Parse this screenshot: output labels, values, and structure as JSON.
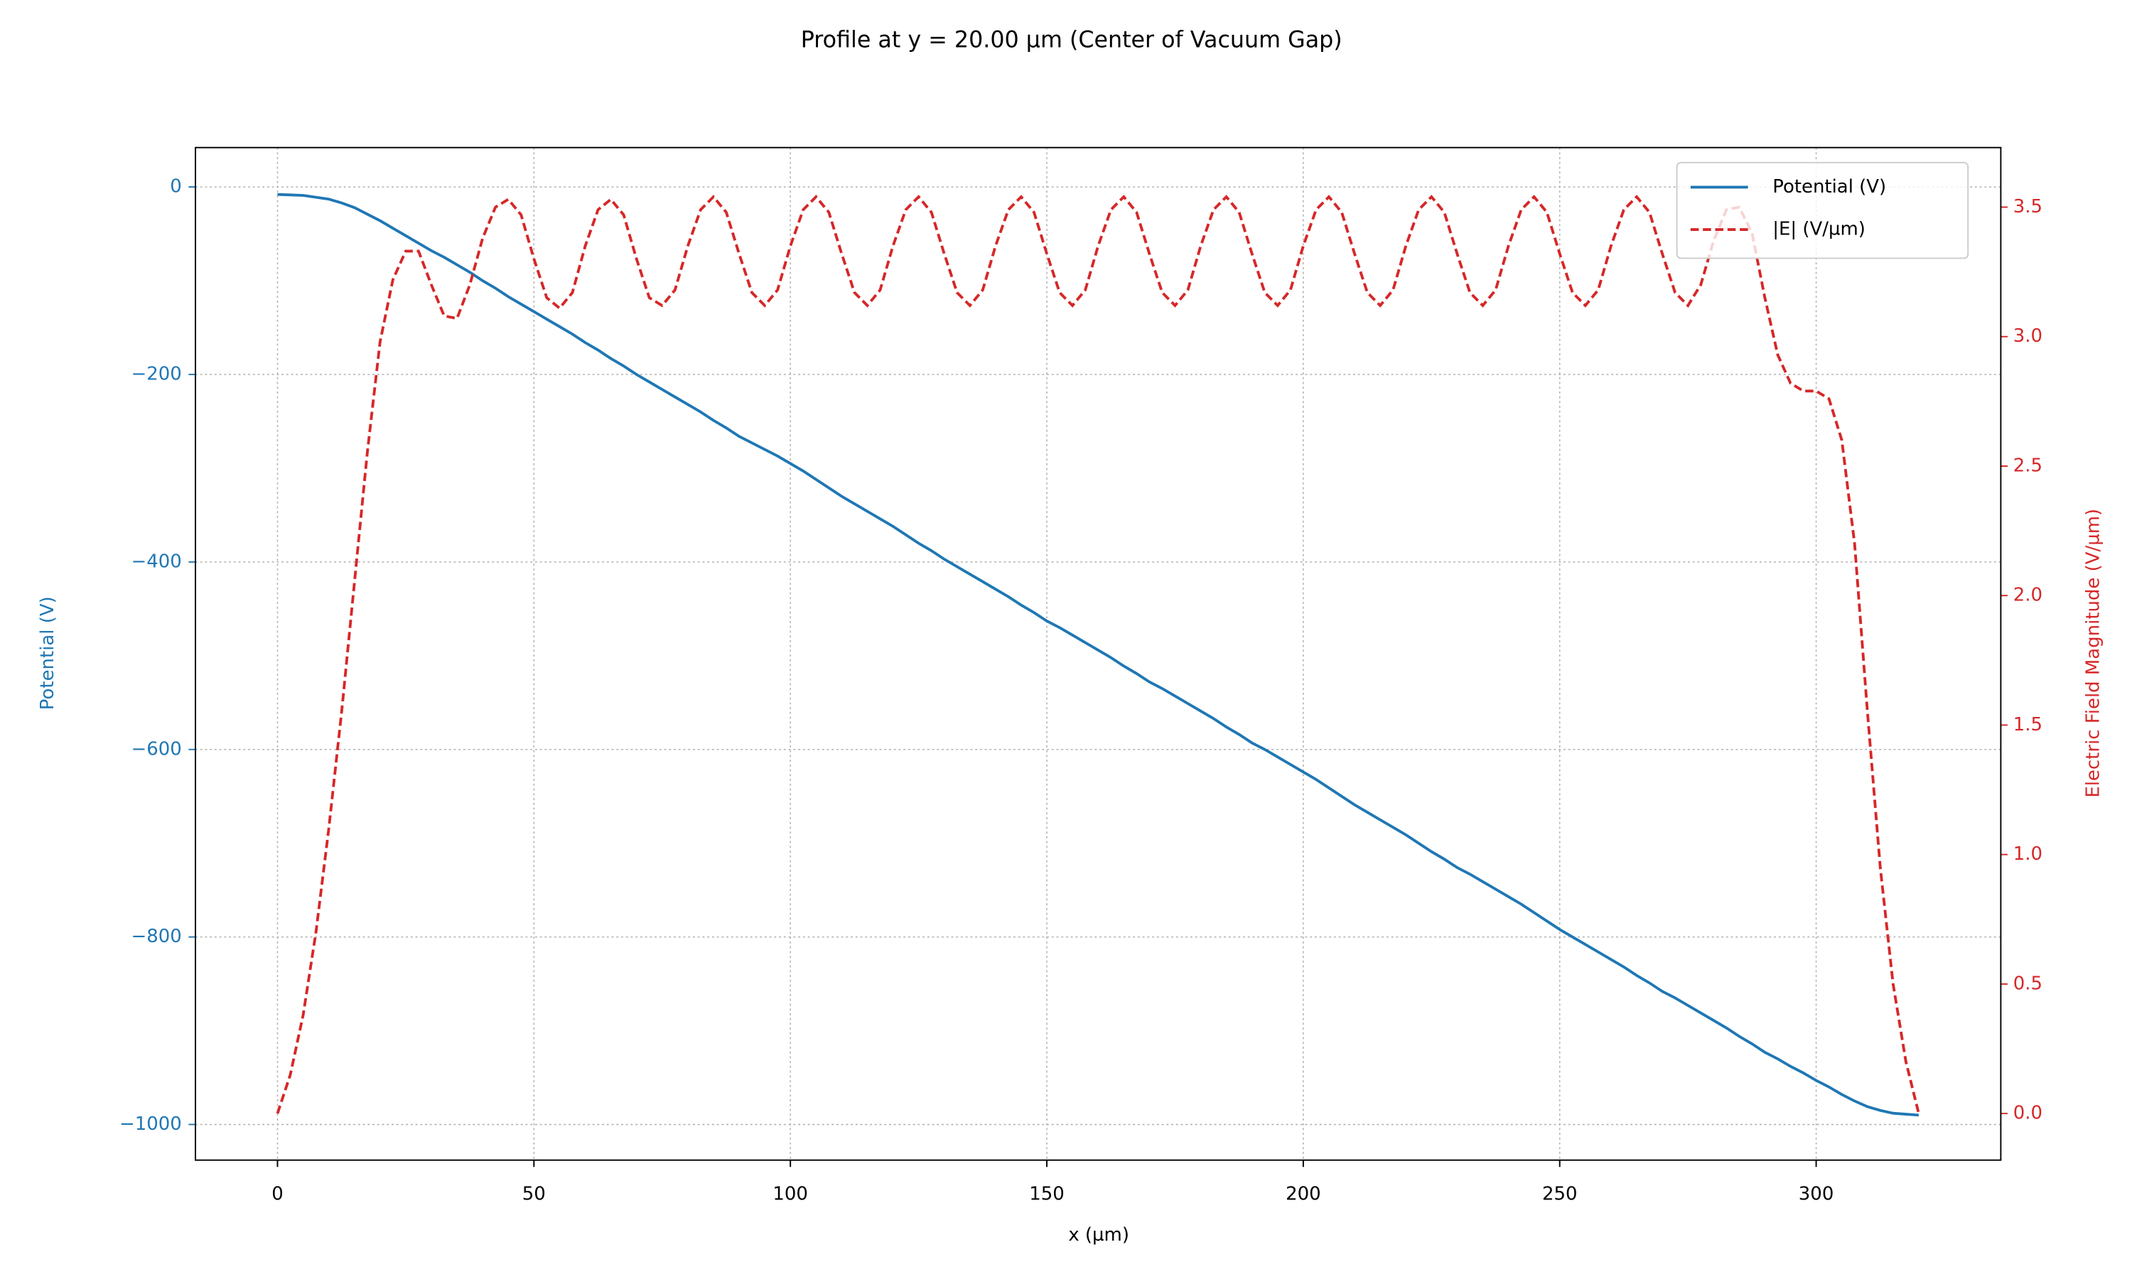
{
  "chart_data": {
    "type": "line",
    "title": "Profile at y = 20.00 µm (Center of Vacuum Gap)",
    "xlabel": "x (µm)",
    "ylabel": "Potential (V)",
    "y2label": "Electric Field Magnitude (V/µm)",
    "x": [
      0,
      2.5,
      5,
      7.5,
      10,
      12.5,
      15,
      17.5,
      20,
      22.5,
      25,
      27.5,
      30,
      32.5,
      35,
      37.5,
      40,
      42.5,
      45,
      47.5,
      50,
      52.5,
      55,
      57.5,
      60,
      62.5,
      65,
      67.5,
      70,
      72.5,
      75,
      77.5,
      80,
      82.5,
      85,
      87.5,
      90,
      92.5,
      95,
      97.5,
      100,
      102.5,
      105,
      107.5,
      110,
      112.5,
      115,
      117.5,
      120,
      122.5,
      125,
      127.5,
      130,
      132.5,
      135,
      137.5,
      140,
      142.5,
      145,
      147.5,
      150,
      152.5,
      155,
      157.5,
      160,
      162.5,
      165,
      167.5,
      170,
      172.5,
      175,
      177.5,
      180,
      182.5,
      185,
      187.5,
      190,
      192.5,
      195,
      197.5,
      200,
      202.5,
      205,
      207.5,
      210,
      212.5,
      215,
      217.5,
      220,
      222.5,
      225,
      227.5,
      230,
      232.5,
      235,
      237.5,
      240,
      242.5,
      245,
      247.5,
      250,
      252.5,
      255,
      257.5,
      260,
      262.5,
      265,
      267.5,
      270,
      272.5,
      275,
      277.5,
      280,
      282.5,
      285,
      287.5,
      290,
      292.5,
      295,
      297.5,
      300,
      302.5,
      305,
      307.5,
      310,
      312.5,
      315,
      317.5,
      320
    ],
    "series": [
      {
        "name": "Potential (V)",
        "color": "#1f77b4",
        "dash": false,
        "axis": "y",
        "values": [
          -8,
          -8.5,
          -9,
          -11,
          -13,
          -17,
          -22,
          -29,
          -36,
          -44,
          -52,
          -60,
          -68,
          -75,
          -83,
          -91,
          -100,
          -108,
          -117,
          -125,
          -133,
          -141,
          -149,
          -157,
          -166,
          -174,
          -183,
          -191,
          -200,
          -208,
          -216,
          -224,
          -232,
          -240,
          -249,
          -257,
          -266,
          -273,
          -280,
          -287,
          -295,
          -303,
          -312,
          -321,
          -330,
          -338,
          -346,
          -354,
          -362,
          -371,
          -380,
          -388,
          -397,
          -405,
          -413,
          -421,
          -429,
          -437,
          -446,
          -454,
          -463,
          -470,
          -478,
          -486,
          -494,
          -502,
          -511,
          -519,
          -528,
          -535,
          -543,
          -551,
          -559,
          -567,
          -576,
          -584,
          -593,
          -600,
          -608,
          -616,
          -624,
          -632,
          -641,
          -650,
          -659,
          -667,
          -675,
          -683,
          -691,
          -700,
          -709,
          -717,
          -726,
          -733,
          -741,
          -749,
          -757,
          -765,
          -774,
          -783,
          -792,
          -800,
          -808,
          -816,
          -824,
          -832,
          -841,
          -849,
          -858,
          -865,
          -873,
          -881,
          -889,
          -897,
          -906,
          -914,
          -923,
          -930,
          -938,
          -945,
          -953,
          -960,
          -968,
          -975,
          -981,
          -985,
          -988,
          -989,
          -990
        ]
      },
      {
        "name": "|E| (V/µm)",
        "color": "#d62728",
        "dash": true,
        "axis": "y2",
        "values": [
          0,
          0.15,
          0.38,
          0.7,
          1.1,
          1.55,
          2.05,
          2.55,
          2.98,
          3.22,
          3.33,
          3.33,
          3.2,
          3.08,
          3.07,
          3.2,
          3.38,
          3.5,
          3.53,
          3.47,
          3.3,
          3.15,
          3.11,
          3.17,
          3.35,
          3.49,
          3.53,
          3.47,
          3.3,
          3.15,
          3.12,
          3.18,
          3.35,
          3.49,
          3.54,
          3.48,
          3.32,
          3.17,
          3.12,
          3.18,
          3.35,
          3.49,
          3.54,
          3.48,
          3.32,
          3.17,
          3.12,
          3.18,
          3.35,
          3.49,
          3.54,
          3.48,
          3.32,
          3.17,
          3.12,
          3.18,
          3.35,
          3.49,
          3.54,
          3.48,
          3.32,
          3.17,
          3.12,
          3.18,
          3.35,
          3.49,
          3.54,
          3.48,
          3.32,
          3.17,
          3.12,
          3.18,
          3.35,
          3.49,
          3.54,
          3.48,
          3.32,
          3.17,
          3.12,
          3.18,
          3.35,
          3.49,
          3.54,
          3.48,
          3.32,
          3.17,
          3.12,
          3.18,
          3.35,
          3.49,
          3.54,
          3.48,
          3.32,
          3.17,
          3.12,
          3.18,
          3.35,
          3.49,
          3.54,
          3.48,
          3.32,
          3.17,
          3.12,
          3.18,
          3.35,
          3.49,
          3.54,
          3.48,
          3.32,
          3.17,
          3.12,
          3.2,
          3.37,
          3.49,
          3.5,
          3.4,
          3.15,
          2.93,
          2.82,
          2.79,
          2.79,
          2.76,
          2.6,
          2.2,
          1.55,
          0.95,
          0.5,
          0.2,
          0
        ]
      }
    ],
    "xlim": [
      -16,
      336
    ],
    "xticks": [
      0,
      50,
      100,
      150,
      200,
      250,
      300
    ],
    "ylim": [
      -1038,
      42
    ],
    "yticks": [
      0,
      {
        "value": -200,
        "label": "−200"
      },
      {
        "value": -400,
        "label": "−400"
      },
      {
        "value": -600,
        "label": "−600"
      },
      {
        "value": -800,
        "label": "−800"
      },
      {
        "value": -1000,
        "label": "−1000"
      }
    ],
    "y2lim": [
      -0.18,
      3.73
    ],
    "y2ticks": [
      {
        "value": 0,
        "label": "0.0"
      },
      0.5,
      {
        "value": 1,
        "label": "1.0"
      },
      1.5,
      {
        "value": 2,
        "label": "2.0"
      },
      2.5,
      {
        "value": 3,
        "label": "3.0"
      },
      3.5
    ],
    "ylabel_color": "#1f77b4",
    "y2label_color": "#d62728",
    "grid": true,
    "legend": "upper right"
  }
}
